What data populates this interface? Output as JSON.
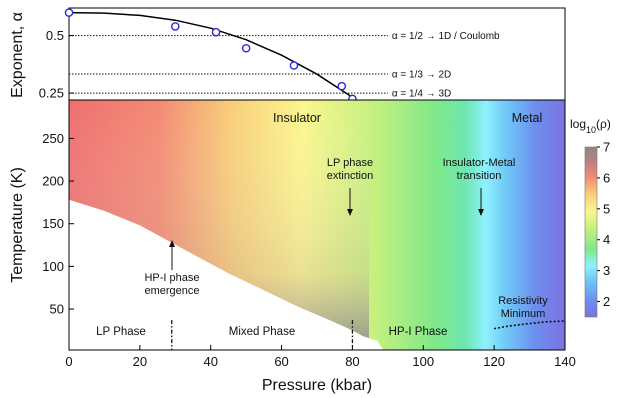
{
  "chart_data": [
    {
      "type": "scatter",
      "panel": "top",
      "ylabel": "Exponent, α",
      "xlim": [
        0,
        140
      ],
      "ylim": [
        0.22,
        0.62
      ],
      "y_ticks": [
        0.25,
        0.5
      ],
      "y_tick_labels": [
        "0.25",
        "0.5"
      ],
      "series": [
        {
          "values": [
            {
              "x": 0,
              "y": 0.6
            },
            {
              "x": 30,
              "y": 0.54
            },
            {
              "x": 41.5,
              "y": 0.515
            },
            {
              "x": 50,
              "y": 0.445
            },
            {
              "x": 63.5,
              "y": 0.37
            },
            {
              "x": 77,
              "y": 0.28
            },
            {
              "x": 80,
              "y": 0.225
            }
          ]
        }
      ],
      "fit_curve": [
        {
          "x": 0,
          "y": 0.6
        },
        {
          "x": 10,
          "y": 0.598
        },
        {
          "x": 20,
          "y": 0.588
        },
        {
          "x": 30,
          "y": 0.567
        },
        {
          "x": 40,
          "y": 0.532
        },
        {
          "x": 50,
          "y": 0.482
        },
        {
          "x": 60,
          "y": 0.415
        },
        {
          "x": 70,
          "y": 0.332
        },
        {
          "x": 80,
          "y": 0.232
        }
      ],
      "reference_lines": [
        {
          "y": 0.5,
          "x_end": 90,
          "label": "α = 1/2 → 1D / Coulomb"
        },
        {
          "y": 0.333,
          "x_end": 90,
          "label": "α = 1/3 → 2D"
        },
        {
          "y": 0.25,
          "x_end": 90,
          "label": "α = 1/4 → 3D"
        }
      ]
    },
    {
      "type": "heatmap",
      "panel": "bottom",
      "xlabel": "Pressure (kbar)",
      "ylabel": "Temperature (K)",
      "xlim": [
        0,
        140
      ],
      "ylim": [
        2,
        295
      ],
      "x_ticks": [
        0,
        20,
        40,
        60,
        80,
        100,
        120,
        140
      ],
      "y_ticks": [
        50,
        100,
        150,
        200,
        250
      ],
      "colorbar": {
        "label": "log10(ρ)",
        "range": [
          1.5,
          7
        ],
        "ticks": [
          2,
          3,
          4,
          5,
          6,
          7
        ]
      },
      "lower_boundary": [
        {
          "x": 0,
          "y": 178
        },
        {
          "x": 10,
          "y": 165
        },
        {
          "x": 20,
          "y": 148
        },
        {
          "x": 28,
          "y": 130
        },
        {
          "x": 36,
          "y": 112
        },
        {
          "x": 45,
          "y": 92
        },
        {
          "x": 55,
          "y": 72
        },
        {
          "x": 65,
          "y": 52
        },
        {
          "x": 73,
          "y": 38
        },
        {
          "x": 80,
          "y": 25
        },
        {
          "x": 83,
          "y": 18
        },
        {
          "x": 87,
          "y": 13
        },
        {
          "x": 89,
          "y": 0
        }
      ],
      "resistivity_minimum_line": [
        {
          "x": 120,
          "y": 27
        },
        {
          "x": 124,
          "y": 30
        },
        {
          "x": 130,
          "y": 33
        },
        {
          "x": 135,
          "y": 35
        },
        {
          "x": 140,
          "y": 36
        }
      ],
      "phase_dividers": [
        29,
        80
      ],
      "annotations": {
        "insulator": "Insulator",
        "metal": "Metal",
        "lp_extinction": "LP phase\nextinction",
        "im_transition": "Insulator-Metal\ntransition",
        "hp_emergence": "HP-I phase\nemergence",
        "resistivity_min": "Resistivity\nMinimum"
      },
      "phase_labels": {
        "lp": "LP Phase",
        "mixed": "Mixed Phase",
        "hp": "HP-I Phase"
      }
    }
  ]
}
